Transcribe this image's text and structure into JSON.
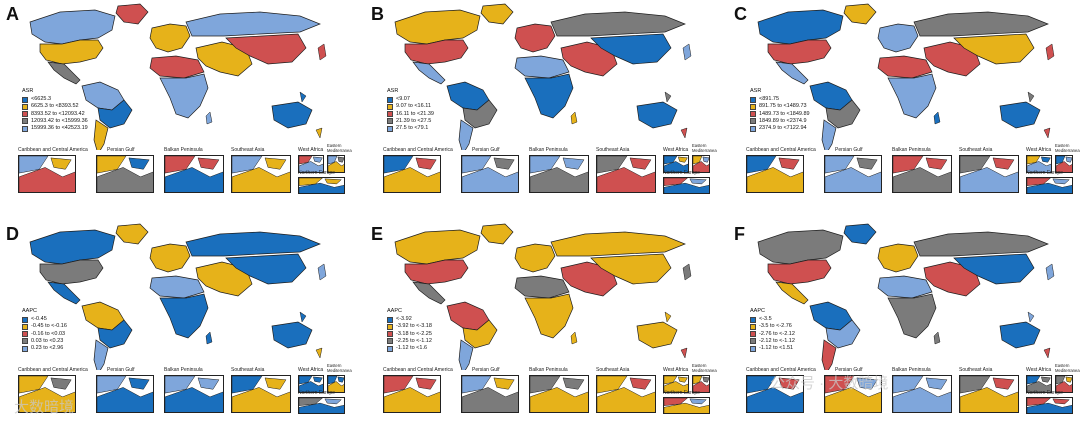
{
  "colors": {
    "blue": "#1a6fbd",
    "yellow": "#e6b21a",
    "red": "#cf5050",
    "gray": "#7b7b7b",
    "lightblue": "#7fa6db",
    "outline": "#1e1e1e"
  },
  "inset_titles": {
    "caribbean": "Caribbean and Central America",
    "persian": "Persian Gulf",
    "balkan": "Balkan Peninsula",
    "seasia": "Southeast Asia",
    "westafrica": "West Africa",
    "eastmed": "Eastern Mediterranea",
    "northeu": "Northern Europe"
  },
  "panels": [
    {
      "label": "A",
      "legend_title": "ASR",
      "legend": [
        "<6625.3",
        "6625.3 to <8393.52",
        "8393.52 to <12093.42",
        "12093.42 to <15999.36",
        "15999.36 to <42523.19"
      ],
      "scheme": [
        "lightblue",
        "red",
        "yellow",
        "gray",
        "lightblue",
        "blue",
        "yellow",
        "yellow",
        "red",
        "lightblue",
        "lightblue",
        "yellow",
        "red",
        "blue"
      ]
    },
    {
      "label": "B",
      "legend_title": "ASR",
      "legend": [
        "<9.07",
        "9.07 to <16.11",
        "16.11 to <21.39",
        "21.39 to <27.5",
        "27.5 to <79.1"
      ],
      "scheme": [
        "yellow",
        "yellow",
        "red",
        "lightblue",
        "blue",
        "gray",
        "lightblue",
        "red",
        "lightblue",
        "blue",
        "gray",
        "red",
        "blue",
        "blue"
      ]
    },
    {
      "label": "C",
      "legend_title": "ASR",
      "legend": [
        "<891.75",
        "891.75 to <1489.73",
        "1489.73 to <1849.89",
        "1849.89 to <2374.9",
        "2374.9 to <7122.94"
      ],
      "scheme": [
        "blue",
        "yellow",
        "red",
        "lightblue",
        "blue",
        "gray",
        "lightblue",
        "lightblue",
        "red",
        "lightblue",
        "gray",
        "red",
        "yellow",
        "blue"
      ]
    },
    {
      "label": "D",
      "legend_title": "AAPC",
      "legend": [
        "<-0.45",
        "-0.45 to <-0.16",
        "-0.16 to <0.03",
        "0.03 to <0.23",
        "0.23 to <2.96"
      ],
      "scheme": [
        "blue",
        "yellow",
        "gray",
        "blue",
        "yellow",
        "blue",
        "lightblue",
        "yellow",
        "lightblue",
        "blue",
        "blue",
        "yellow",
        "blue",
        "blue"
      ]
    },
    {
      "label": "E",
      "legend_title": "AAPC",
      "legend": [
        "<-3.92",
        "-3.92 to <-3.18",
        "-3.18 to <-2.25",
        "-2.25 to <-1.12",
        "-1.12 to <1.6"
      ],
      "scheme": [
        "yellow",
        "yellow",
        "red",
        "gray",
        "red",
        "yellow",
        "lightblue",
        "yellow",
        "gray",
        "yellow",
        "yellow",
        "red",
        "yellow",
        "yellow"
      ]
    },
    {
      "label": "F",
      "legend_title": "AAPC",
      "legend": [
        "<-3.5",
        "-3.5 to <-2.76",
        "-2.76 to <-2.12",
        "-2.12 to <-1.12",
        "-1.12 to <1.51"
      ],
      "scheme": [
        "gray",
        "blue",
        "red",
        "yellow",
        "blue",
        "lightblue",
        "red",
        "yellow",
        "lightblue",
        "gray",
        "gray",
        "red",
        "blue",
        "blue"
      ]
    }
  ],
  "watermark": {
    "left": "大数暗境",
    "right": "公众号 · 大数暗境"
  }
}
